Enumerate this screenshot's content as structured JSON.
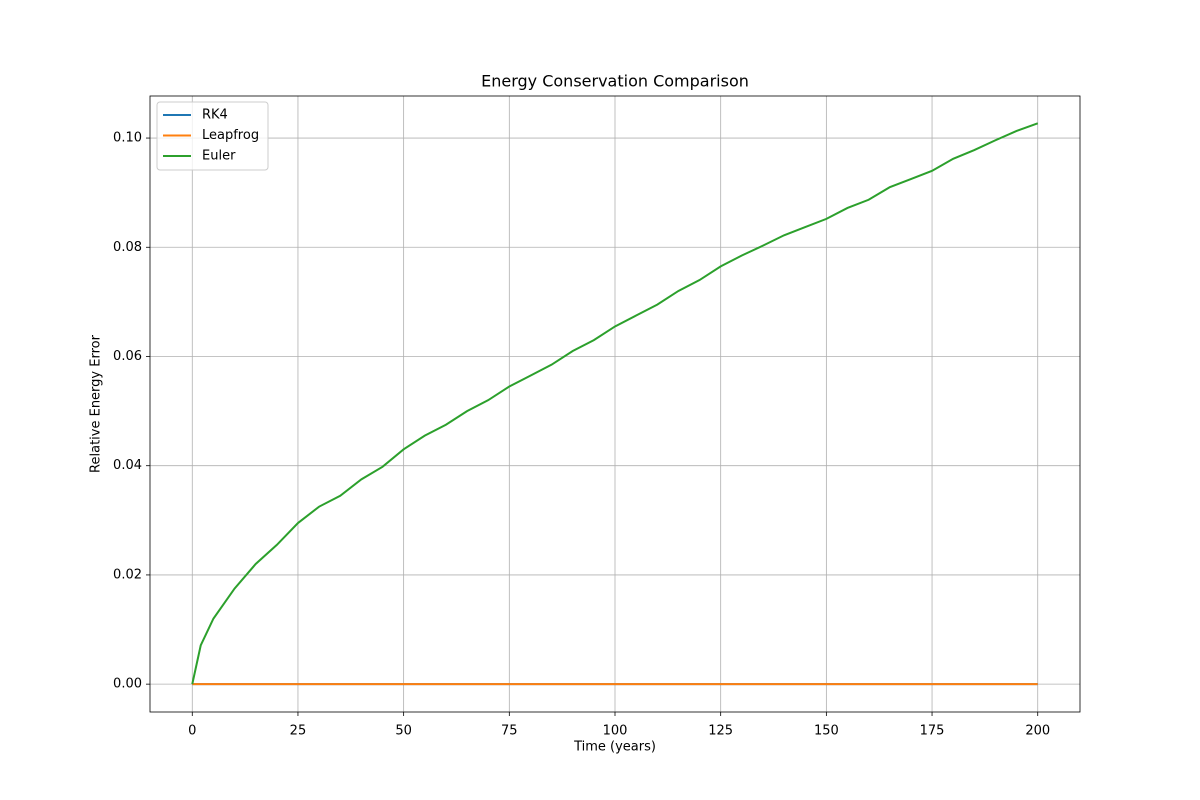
{
  "chart_data": {
    "type": "line",
    "title": "Energy Conservation Comparison",
    "x_label": "Time (years)",
    "y_label": "Relative Energy Error",
    "xlim": [
      -10,
      210
    ],
    "ylim": [
      -0.0051,
      0.1077
    ],
    "xticks": [
      0,
      25,
      50,
      75,
      100,
      125,
      150,
      175,
      200
    ],
    "yticks": [
      {
        "value": 0,
        "label": "0.00"
      },
      0.02,
      0.04,
      0.06,
      0.08,
      {
        "value": 0.1,
        "label": "0.10"
      }
    ],
    "grid": true,
    "legend": "upper left",
    "series": [
      {
        "name": "RK4",
        "color": "#1f77b4",
        "x": [
          0,
          50,
          100,
          150,
          200
        ],
        "values": [
          0,
          0,
          0,
          0,
          0
        ]
      },
      {
        "name": "Leapfrog",
        "color": "#ff7f0e",
        "x": [
          0,
          50,
          100,
          150,
          200
        ],
        "values": [
          0,
          0,
          0,
          0,
          0
        ]
      },
      {
        "name": "Euler",
        "color": "#2ca02c",
        "x": [
          0,
          2,
          5,
          10,
          15,
          20,
          25,
          30,
          35,
          40,
          45,
          50,
          55,
          60,
          65,
          70,
          75,
          80,
          85,
          90,
          95,
          100,
          105,
          110,
          115,
          120,
          125,
          130,
          135,
          140,
          145,
          150,
          155,
          160,
          165,
          170,
          175,
          180,
          185,
          190,
          195,
          200
        ],
        "values": [
          0,
          0.0071,
          0.012,
          0.0175,
          0.022,
          0.0255,
          0.0295,
          0.0325,
          0.0345,
          0.0375,
          0.0398,
          0.043,
          0.0455,
          0.0475,
          0.05,
          0.052,
          0.0545,
          0.0565,
          0.0585,
          0.061,
          0.063,
          0.0655,
          0.0675,
          0.0695,
          0.072,
          0.074,
          0.0765,
          0.0785,
          0.0803,
          0.0822,
          0.0837,
          0.0852,
          0.0872,
          0.0887,
          0.091,
          0.0925,
          0.094,
          0.0962,
          0.0978,
          0.0996,
          0.1013,
          0.1027
        ]
      }
    ]
  }
}
